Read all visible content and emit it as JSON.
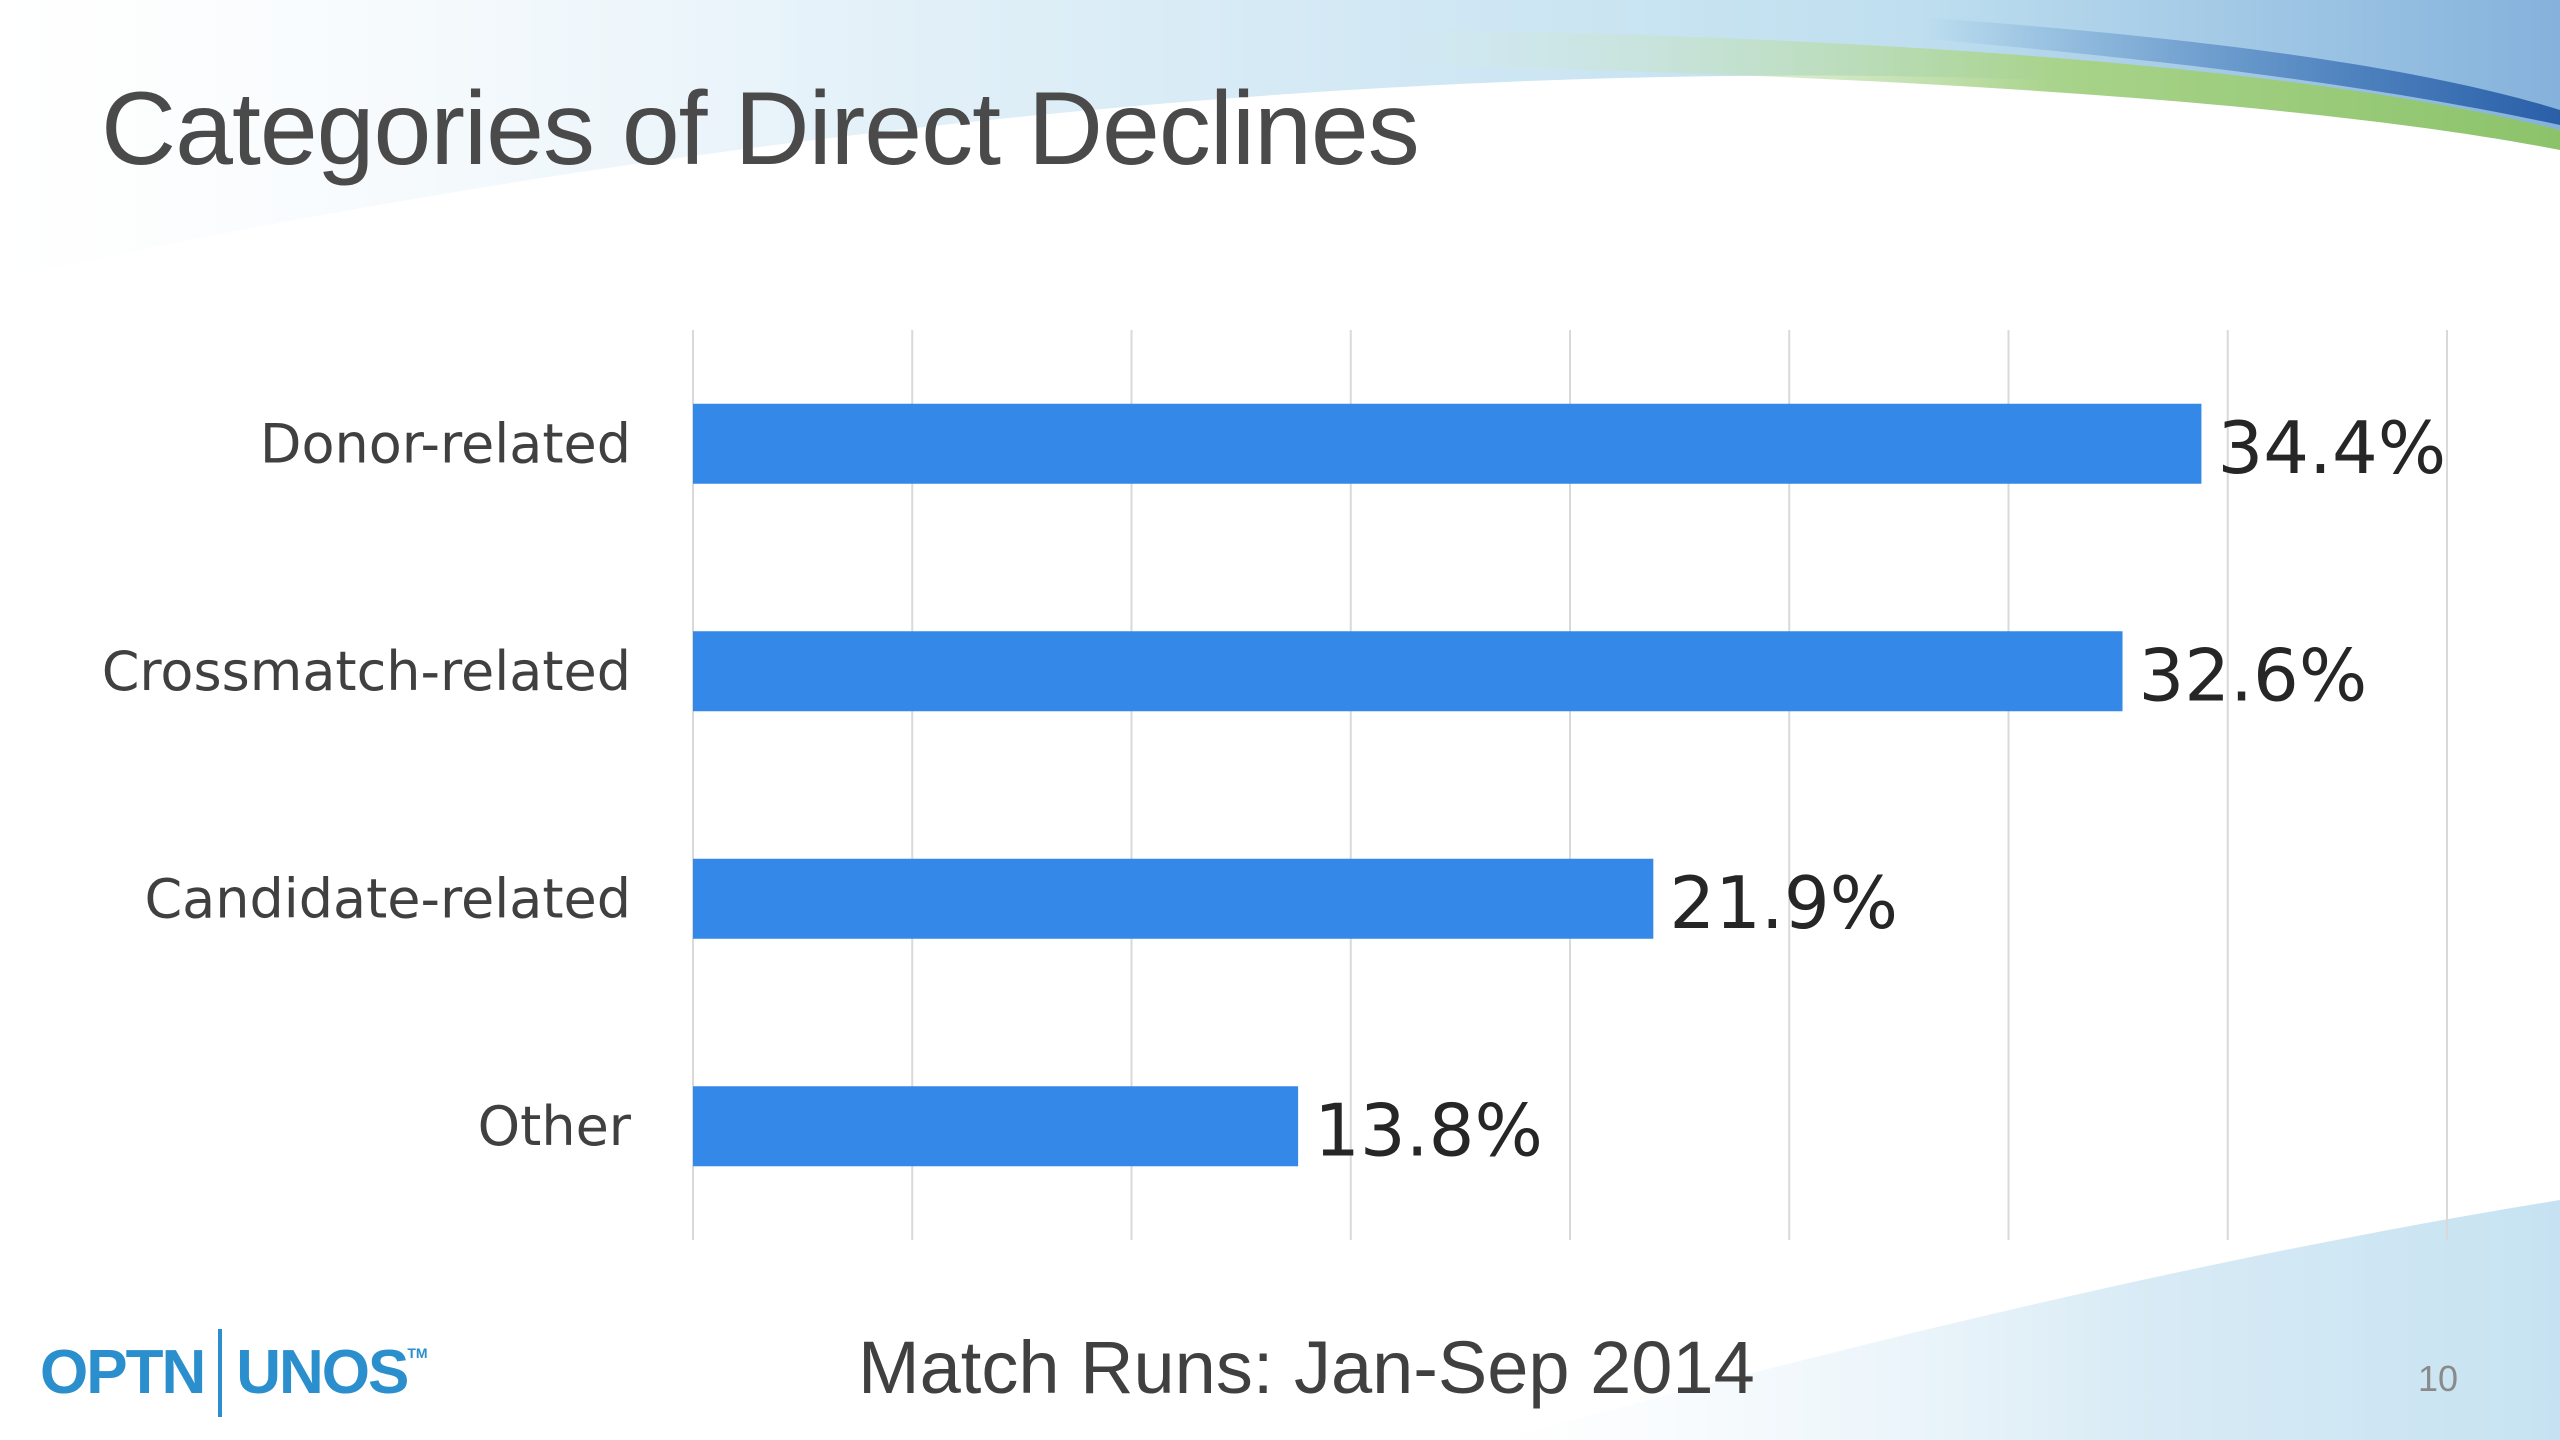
{
  "slide": {
    "title": "Categories of Direct Declines",
    "footer": "Match Runs: Jan-Sep 2014",
    "page_number": "10"
  },
  "logo": {
    "left_text": "OPTN",
    "right_text": "UNOS",
    "trademark": "TM",
    "color": "#2a8fcc"
  },
  "colors": {
    "bar": "#3388e8",
    "gridline": "#d9d9d9",
    "title": "#4a4a4a"
  },
  "chart_data": {
    "type": "bar",
    "orientation": "horizontal",
    "categories": [
      "Donor-related",
      "Crossmatch-related",
      "Candidate-related",
      "Other"
    ],
    "values": [
      34.4,
      32.6,
      21.9,
      13.8
    ],
    "value_labels": [
      "34.4%",
      "32.6%",
      "21.9%",
      "13.8%"
    ],
    "unit": "%",
    "xlim": [
      0,
      40
    ],
    "gridlines": true,
    "grid_interval": 5,
    "legend": "none",
    "xlabel": "",
    "ylabel": ""
  }
}
